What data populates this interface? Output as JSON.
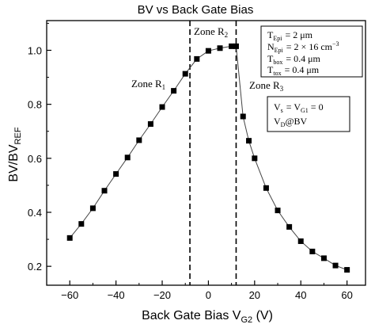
{
  "chart_data": {
    "type": "scatter",
    "title": "BV vs Back Gate Bias",
    "xlabel": {
      "main": "Back Gate Bias V",
      "sub": "G2",
      "unit": " (V)"
    },
    "ylabel": {
      "main": "BV/BV",
      "sub": "REF"
    },
    "xlim": [
      -70,
      68
    ],
    "ylim": [
      0.13,
      1.11
    ],
    "x_ticks": [
      -60,
      -40,
      -20,
      0,
      20,
      40,
      60
    ],
    "y_ticks": [
      0.2,
      0.4,
      0.6,
      0.8,
      1.0
    ],
    "x_tick_labels": [
      "−60",
      "−40",
      "−20",
      "0",
      "20",
      "40",
      "60"
    ],
    "y_tick_labels": [
      "0.2",
      "0.4",
      "0.6",
      "0.8",
      "1.0"
    ],
    "grid": false,
    "series": [
      {
        "marker": "square",
        "line": true,
        "color": "#000000",
        "x": [
          -60,
          -55,
          -50,
          -45,
          -40,
          -35,
          -30,
          -25,
          -20,
          -15,
          -10,
          -5,
          0,
          5,
          10,
          12,
          15,
          17.5,
          20,
          25,
          30,
          35,
          40,
          45,
          50,
          55,
          60
        ],
        "y": [
          0.305,
          0.357,
          0.415,
          0.48,
          0.542,
          0.603,
          0.667,
          0.727,
          0.79,
          0.85,
          0.913,
          0.968,
          0.998,
          1.008,
          1.015,
          1.015,
          0.755,
          0.665,
          0.6,
          0.49,
          0.407,
          0.346,
          0.293,
          0.255,
          0.23,
          0.203,
          0.187
        ]
      }
    ],
    "vlines": [
      -8,
      12
    ],
    "zone_labels": [
      {
        "text": "Zone R",
        "sub": "1"
      },
      {
        "text": "Zone R",
        "sub": "2"
      },
      {
        "text": "Zone R",
        "sub": "3"
      }
    ],
    "info_box_1": [
      {
        "sym": "T",
        "sub": "Epi",
        "val": "=  2 μm",
        "sup": ""
      },
      {
        "sym": "N",
        "sub": "Epi",
        "val": "=  2 × 16 cm",
        "sup": "−3"
      },
      {
        "sym": "T",
        "sub": "box",
        "val": "=  0.4 μm",
        "sup": ""
      },
      {
        "sym": "T",
        "sub": "tox",
        "val": "=  0.4 μm",
        "sup": ""
      }
    ],
    "info_box_2": [
      {
        "sym": "V",
        "sub": "s",
        "val": "= V",
        "sub2": "G1",
        "val2": " = 0"
      },
      {
        "sym": "V",
        "sub": "D",
        "val": "@BV",
        "sub2": "",
        "val2": ""
      }
    ]
  }
}
